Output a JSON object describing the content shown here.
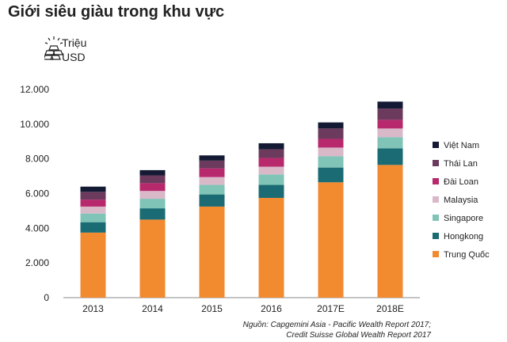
{
  "title": "Giới siêu giàu trong khu vực",
  "unit": {
    "line1": "Triệu",
    "line2": "USD",
    "icon": "gold-bars-icon"
  },
  "source": {
    "line1": "Nguồn: Capgemini Asia - Pacific Wealth Report 2017;",
    "line2": "Credit Suisse Global Wealth Report 2017"
  },
  "chart_data": {
    "type": "bar",
    "stacked": true,
    "categories": [
      "2013",
      "2014",
      "2015",
      "2016",
      "2017E",
      "2018E"
    ],
    "ylim": [
      0,
      12000
    ],
    "yticks": [
      0,
      2000,
      4000,
      6000,
      8000,
      10000,
      12000
    ],
    "ytick_labels": [
      "0",
      "2.000",
      "4.000",
      "6.000",
      "8.000",
      "10.000",
      "12.000"
    ],
    "grid": false,
    "legend_position": "right",
    "series": [
      {
        "name": "Trung Quốc",
        "color": "#F28A30",
        "values": [
          3750,
          4500,
          5250,
          5750,
          6650,
          7650
        ]
      },
      {
        "name": "Hongkong",
        "color": "#1A6B73",
        "values": [
          600,
          650,
          700,
          750,
          850,
          950
        ]
      },
      {
        "name": "Singapore",
        "color": "#7FC4B7",
        "values": [
          500,
          550,
          550,
          600,
          650,
          650
        ]
      },
      {
        "name": "Malaysia",
        "color": "#D9B8C8",
        "values": [
          400,
          450,
          450,
          450,
          500,
          500
        ]
      },
      {
        "name": "Đài Loan",
        "color": "#B8286C",
        "values": [
          400,
          450,
          500,
          500,
          500,
          500
        ]
      },
      {
        "name": "Thái Lan",
        "color": "#6B3A5C",
        "values": [
          450,
          450,
          450,
          500,
          600,
          650
        ]
      },
      {
        "name": "Việt Nam",
        "color": "#141A33",
        "values": [
          300,
          300,
          300,
          350,
          350,
          400
        ]
      }
    ]
  }
}
